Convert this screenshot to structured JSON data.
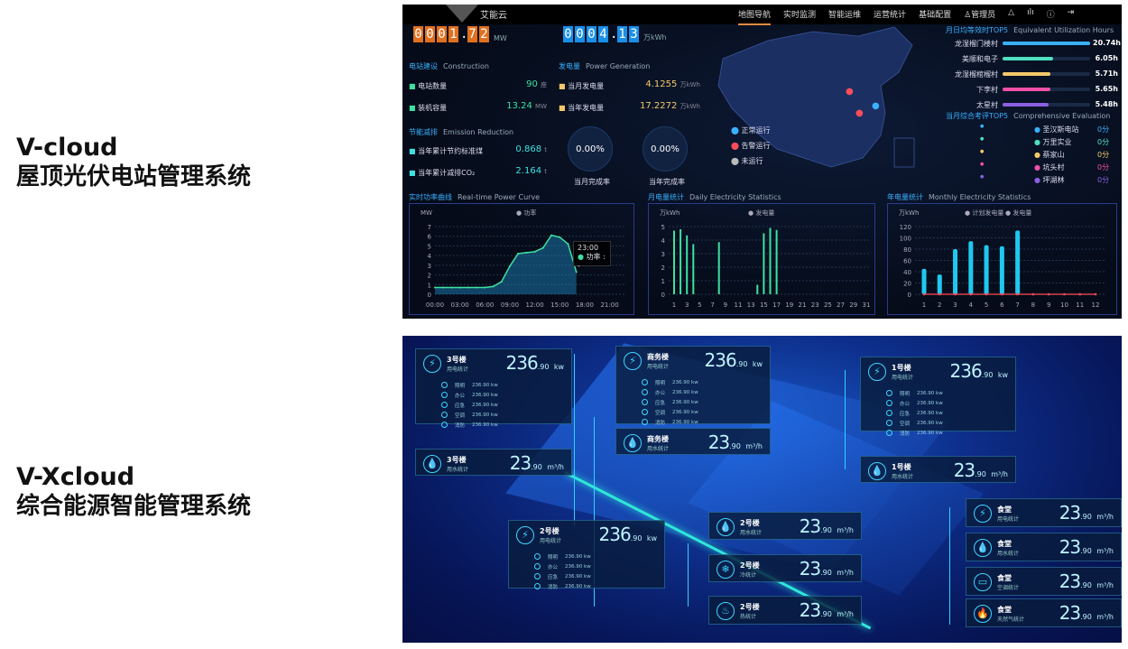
{
  "captions": [
    {
      "title": "V-cloud",
      "subtitle": "屋顶光伏电站管理系统"
    },
    {
      "title": "V-Xcloud",
      "subtitle": "综合能源智能管理系统"
    }
  ],
  "vcloud": {
    "logo": "艾能云",
    "nav": [
      "地图导航",
      "实时监测",
      "智能运维",
      "运营统计",
      "基础配置"
    ],
    "user": "管理员",
    "nav_icons": [
      "user-icon",
      "bell-icon",
      "chart-icon",
      "info-icon",
      "logout-icon"
    ],
    "power": {
      "digits": [
        "0",
        "0",
        "0",
        "1",
        ".",
        "7",
        "2"
      ],
      "unit": "MW"
    },
    "energy": {
      "digits": [
        "0",
        "0",
        "0",
        "4",
        ".",
        "1",
        "3"
      ],
      "unit": "万kWh"
    },
    "construction": {
      "title": "电站建设",
      "en": "Construction",
      "rows": [
        {
          "label": "电站数量",
          "value": "90",
          "unit": "座"
        },
        {
          "label": "装机容量",
          "value": "13.24",
          "unit": "MW"
        }
      ]
    },
    "generation": {
      "title": "发电量",
      "en": "Power Generation",
      "rows": [
        {
          "label": "当月发电量",
          "value": "4.1255",
          "unit": "万kWh"
        },
        {
          "label": "当年发电量",
          "value": "17.2272",
          "unit": "万kWh"
        }
      ]
    },
    "emission": {
      "title": "节能减排",
      "en": "Emission Reduction",
      "rows": [
        {
          "label": "当年累计节约标准煤",
          "value": "0.868",
          "unit": "t"
        },
        {
          "label": "当年累计减排CO₂",
          "value": "2.164",
          "unit": "t"
        }
      ]
    },
    "rates": [
      {
        "value": "0.00%",
        "label": "当月完成率"
      },
      {
        "value": "0.00%",
        "label": "当年完成率"
      }
    ],
    "legend": [
      {
        "label": "正常运行",
        "color": "#3ab0ff"
      },
      {
        "label": "告警运行",
        "color": "#ff4d5a"
      },
      {
        "label": "未运行",
        "color": "#bbbbbb"
      }
    ],
    "top5_hours": {
      "title": "月日均等效时TOP5",
      "en": "Equivalent Utilization Hours",
      "items": [
        {
          "name": "龙湿榴门楼村",
          "value": "20.74h",
          "fraction": 1.0,
          "color": "#3ab0ff"
        },
        {
          "name": "美顺和电子",
          "value": "6.05h",
          "fraction": 0.58,
          "color": "#4fe0c0"
        },
        {
          "name": "龙湿榴棺榴村",
          "value": "5.71h",
          "fraction": 0.55,
          "color": "#f5c96a"
        },
        {
          "name": "下李村",
          "value": "5.65h",
          "fraction": 0.55,
          "color": "#f050a8"
        },
        {
          "name": "太星村",
          "value": "5.48h",
          "fraction": 0.53,
          "color": "#8a60e0"
        }
      ]
    },
    "top5_eval": {
      "title": "当月综合考评TOP5",
      "en": "Comprehensive Evaluation",
      "items": [
        {
          "name": "圣汉斯电站",
          "value": "0分",
          "color": "#3ab0ff"
        },
        {
          "name": "万里实业",
          "value": "0分",
          "color": "#4fe0c0"
        },
        {
          "name": "蔡家山",
          "value": "0分",
          "color": "#f5c96a"
        },
        {
          "name": "坑头村",
          "value": "0分",
          "color": "#f050a8"
        },
        {
          "name": "坪湖林",
          "value": "0分",
          "color": "#8a60e0"
        }
      ]
    },
    "tooltip": {
      "time": "23:00",
      "label": "功率 : -"
    }
  },
  "chart_data": [
    {
      "type": "area",
      "title": "实时功率曲线",
      "subtitle": "Real-time Power Curve",
      "ylabel": "MW",
      "legend": [
        "功率"
      ],
      "color": "#3fe0a0",
      "x": [
        "00:00",
        "01:00",
        "02:00",
        "03:00",
        "04:00",
        "05:00",
        "06:00",
        "07:00",
        "08:00",
        "09:00",
        "10:00",
        "11:00",
        "12:00",
        "13:00",
        "14:00",
        "15:00",
        "16:00",
        "17:00"
      ],
      "values": [
        0.7,
        0.7,
        0.7,
        0.7,
        0.7,
        0.7,
        0.7,
        0.8,
        1.3,
        2.9,
        4.2,
        4.3,
        4.4,
        4.8,
        6.1,
        5.9,
        5.2,
        2.3
      ],
      "xticks": [
        "00:00",
        "03:00",
        "06:00",
        "09:00",
        "12:00",
        "15:00",
        "18:00",
        "21:00"
      ],
      "ylim": [
        0,
        7
      ],
      "yticks": [
        0,
        1,
        2,
        3,
        4,
        5,
        6,
        7
      ]
    },
    {
      "type": "bar",
      "title": "月电量统计",
      "subtitle": "Daily Electricity Statistics",
      "ylabel": "万kWh",
      "legend": [
        "发电量"
      ],
      "color": "#3fe0a0",
      "categories": [
        1,
        2,
        3,
        4,
        5,
        6,
        7,
        8,
        9,
        10,
        11,
        12,
        13,
        14,
        15,
        16,
        17,
        18,
        19,
        20,
        21,
        22,
        23,
        24,
        25,
        26,
        27,
        28,
        29,
        30,
        31
      ],
      "values": [
        4.7,
        4.8,
        4.35,
        3.7,
        0,
        0,
        0,
        3.85,
        0,
        0,
        0,
        0,
        0,
        0.7,
        4.5,
        4.9,
        4.75,
        0,
        0,
        0,
        0,
        0,
        0,
        0,
        0,
        0,
        0,
        0,
        0,
        0,
        0
      ],
      "xticks": [
        1,
        3,
        5,
        7,
        9,
        11,
        13,
        15,
        17,
        19,
        21,
        23,
        25,
        27,
        29,
        31
      ],
      "ylim": [
        0,
        5
      ],
      "yticks": [
        0,
        1,
        2,
        3,
        4,
        5
      ]
    },
    {
      "type": "bar",
      "title": "年电量统计",
      "subtitle": "Monthly Electricity Statistics",
      "ylabel": "万kWh",
      "categories": [
        1,
        2,
        3,
        4,
        5,
        6,
        7,
        8,
        9,
        10,
        11,
        12
      ],
      "series": [
        {
          "name": "计划发电量",
          "values": [
            0,
            0,
            0,
            0,
            0,
            0,
            0,
            0,
            0,
            0,
            0,
            0
          ],
          "color": "#ff4d5a"
        },
        {
          "name": "发电量",
          "values": [
            45,
            35,
            80,
            94,
            87,
            85,
            113,
            0,
            0,
            0,
            0,
            0
          ],
          "color": "#1fc8f0"
        }
      ],
      "ylim": [
        0,
        120
      ],
      "yticks": [
        0,
        20,
        40,
        60,
        80,
        100,
        120
      ]
    }
  ],
  "vxcloud": {
    "cards": [
      {
        "id": "c3e",
        "name": "3号楼",
        "sub": "用电统计",
        "value": "236",
        "dec": ".90",
        "unit": "kw",
        "icon": "⚡",
        "iconName": "lightning-icon",
        "items": [
          {
            "l": "照明",
            "v": "236.90 kw"
          },
          {
            "l": "办公",
            "v": "236.90 kw"
          },
          {
            "l": "应急",
            "v": "236.90 kw"
          },
          {
            "l": "空调",
            "v": "236.90 kw"
          },
          {
            "l": "消防",
            "v": "236.90 kw"
          }
        ]
      },
      {
        "id": "cbe",
        "name": "商务楼",
        "sub": "用电统计",
        "value": "236",
        "dec": ".90",
        "unit": "kw",
        "icon": "⚡",
        "iconName": "lightning-icon",
        "items": [
          {
            "l": "照明",
            "v": "236.90 kw"
          },
          {
            "l": "办公",
            "v": "236.90 kw"
          },
          {
            "l": "应急",
            "v": "236.90 kw"
          },
          {
            "l": "空调",
            "v": "236.90 kw"
          },
          {
            "l": "消防",
            "v": "236.90 kw"
          }
        ]
      },
      {
        "id": "c1e",
        "name": "1号楼",
        "sub": "用电统计",
        "value": "236",
        "dec": ".90",
        "unit": "kw",
        "icon": "⚡",
        "iconName": "lightning-icon",
        "items": [
          {
            "l": "照明",
            "v": "236.90 kw"
          },
          {
            "l": "办公",
            "v": "236.90 kw"
          },
          {
            "l": "应急",
            "v": "236.90 kw"
          },
          {
            "l": "空调",
            "v": "236.90 kw"
          },
          {
            "l": "消防",
            "v": "236.90 kw"
          }
        ]
      },
      {
        "id": "cbw",
        "name": "商务楼",
        "sub": "用水统计",
        "value": "23",
        "dec": ".90",
        "unit": "m³/h",
        "icon": "💧",
        "iconName": "water-icon",
        "items": []
      },
      {
        "id": "c3w",
        "name": "3号楼",
        "sub": "用水统计",
        "value": "23",
        "dec": ".90",
        "unit": "m³/h",
        "icon": "💧",
        "iconName": "water-icon",
        "items": []
      },
      {
        "id": "c1w",
        "name": "1号楼",
        "sub": "用水统计",
        "value": "23",
        "dec": ".90",
        "unit": "m³/h",
        "icon": "💧",
        "iconName": "water-icon",
        "items": []
      },
      {
        "id": "c2e",
        "name": "2号楼",
        "sub": "用电统计",
        "value": "236",
        "dec": ".90",
        "unit": "kw",
        "icon": "⚡",
        "iconName": "lightning-icon",
        "items": [
          {
            "l": "照明",
            "v": "236.90 kw"
          },
          {
            "l": "办公",
            "v": "236.90 kw"
          },
          {
            "l": "应急",
            "v": "236.90 kw"
          },
          {
            "l": "消防",
            "v": "236.90 kw"
          }
        ]
      },
      {
        "id": "c2w",
        "name": "2号楼",
        "sub": "用水统计",
        "value": "23",
        "dec": ".90",
        "unit": "m³/h",
        "icon": "💧",
        "iconName": "water-icon",
        "items": []
      },
      {
        "id": "c2c",
        "name": "2号楼",
        "sub": "冷统计",
        "value": "23",
        "dec": ".90",
        "unit": "m³/h",
        "icon": "❄",
        "iconName": "snowflake-icon",
        "items": []
      },
      {
        "id": "c2h",
        "name": "2号楼",
        "sub": "热统计",
        "value": "23",
        "dec": ".90",
        "unit": "m³/h",
        "icon": "♨",
        "iconName": "heat-icon",
        "items": []
      },
      {
        "id": "cfe",
        "name": "食堂",
        "sub": "用电统计",
        "value": "23",
        "dec": ".90",
        "unit": "m³/h",
        "icon": "⚡",
        "iconName": "lightning-icon",
        "items": []
      },
      {
        "id": "cfw",
        "name": "食堂",
        "sub": "用水统计",
        "value": "23",
        "dec": ".90",
        "unit": "m³/h",
        "icon": "💧",
        "iconName": "water-icon",
        "items": []
      },
      {
        "id": "cfa",
        "name": "食堂",
        "sub": "空调统计",
        "value": "23",
        "dec": ".90",
        "unit": "m³/h",
        "icon": "▭",
        "iconName": "air-conditioner-icon",
        "items": []
      },
      {
        "id": "cfg",
        "name": "食堂",
        "sub": "天然气统计",
        "value": "23",
        "dec": ".90",
        "unit": "m³/h",
        "icon": "🔥",
        "iconName": "gas-flame-icon",
        "items": []
      }
    ]
  }
}
